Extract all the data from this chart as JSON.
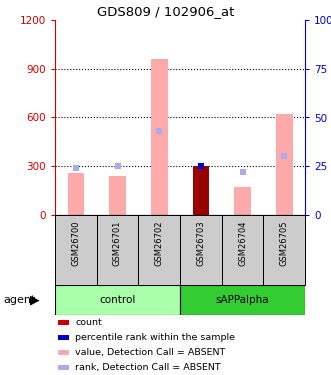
{
  "title": "GDS809 / 102906_at",
  "samples": [
    "GSM26700",
    "GSM26701",
    "GSM26702",
    "GSM26703",
    "GSM26704",
    "GSM26705"
  ],
  "pink_bars": [
    260,
    240,
    960,
    300,
    175,
    620
  ],
  "blue_markers_pct": [
    24,
    25,
    43,
    25,
    22,
    30
  ],
  "dark_red_index": 3,
  "dark_red_value": 300,
  "dark_blue_index": 3,
  "ylim_left": [
    0,
    1200
  ],
  "ylim_right": [
    0,
    100
  ],
  "yticks_left": [
    0,
    300,
    600,
    900,
    1200
  ],
  "yticks_right": [
    0,
    25,
    50,
    75,
    100
  ],
  "ytick_labels_left": [
    "0",
    "300",
    "600",
    "900",
    "1200"
  ],
  "ytick_labels_right": [
    "0",
    "25",
    "50",
    "75",
    "100%"
  ],
  "left_axis_color": "#cc0000",
  "right_axis_color": "#0000cc",
  "pink_bar_color": "#ffaaaa",
  "blue_marker_color": "#aaaaee",
  "dark_blue_color": "#0000cc",
  "dark_red_color": "#990000",
  "control_bg": "#aaffaa",
  "sapp_bg": "#33cc33",
  "label_bg": "#cccccc",
  "legend_items": [
    {
      "label": "count",
      "color": "#cc0000"
    },
    {
      "label": "percentile rank within the sample",
      "color": "#0000cc"
    },
    {
      "label": "value, Detection Call = ABSENT",
      "color": "#ffaaaa"
    },
    {
      "label": "rank, Detection Call = ABSENT",
      "color": "#aaaaee"
    }
  ],
  "fig_width": 3.31,
  "fig_height": 3.75,
  "dpi": 100
}
